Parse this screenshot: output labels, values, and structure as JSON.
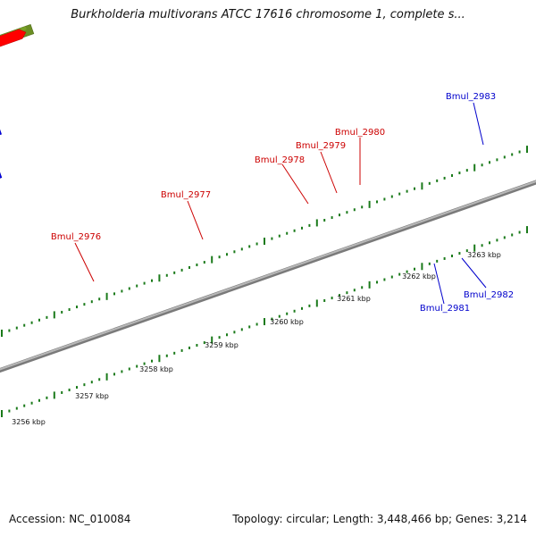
{
  "title": "Burkholderia multivorans ATCC 17616 chromosome 1, complete s...",
  "footer": {
    "accession": "Accession: NC_010084",
    "summary": "Topology: circular; Length: 3,448,466 bp; Genes: 3,214"
  },
  "colors": {
    "forward_gene": "#ff0000",
    "reverse_gene": "#0000ee",
    "forward_cds": "#6b8e23",
    "reverse_cds": "#4b3d8a",
    "other_feature": "#f0e68c",
    "orange_feature": "#ff8c00",
    "tick": "#1a7a1a",
    "backbone": "#999999",
    "forward_label": "#cc0000",
    "reverse_label": "#0000cc"
  },
  "ruler": {
    "unit": "kbp",
    "labels": [
      "3256 kbp",
      "3257 kbp",
      "3258 kbp",
      "3259 kbp",
      "3260 kbp",
      "3261 kbp",
      "3262 kbp",
      "3263 kbp"
    ]
  },
  "features": [
    {
      "kind": "other",
      "track": "cds_top",
      "color": "other_feature"
    },
    {
      "kind": "gene",
      "track": "gene_top",
      "color": "forward_gene"
    },
    {
      "kind": "cds",
      "track": "cds_top",
      "color": "forward_cds",
      "label": "Bmul_2976"
    },
    {
      "kind": "gene",
      "track": "gene_top",
      "color": "forward_gene"
    },
    {
      "kind": "cds",
      "track": "cds_top",
      "color": "forward_cds",
      "label": "Bmul_2977"
    },
    {
      "kind": "gene",
      "track": "gene_top",
      "color": "forward_gene"
    },
    {
      "kind": "other",
      "track": "cds_top",
      "color": "orange_feature",
      "label": "Bmul_2978"
    },
    {
      "kind": "gene",
      "track": "gene_top",
      "color": "forward_gene",
      "label": "Bmul_2979"
    },
    {
      "kind": "gene",
      "track": "gene_top",
      "color": "forward_gene"
    },
    {
      "kind": "gene",
      "track": "gene_top",
      "color": "forward_gene",
      "label": "Bmul_2980"
    },
    {
      "kind": "gene",
      "track": "gene_bottom",
      "color": "reverse_gene"
    },
    {
      "kind": "cds",
      "track": "cds_bottom",
      "color": "reverse_cds",
      "label": "Bmul_2981"
    },
    {
      "kind": "gene",
      "track": "gene_bottom",
      "color": "reverse_gene",
      "label": "Bmul_2982"
    },
    {
      "kind": "cds",
      "track": "cds_far",
      "color": "reverse_cds",
      "label": "Bmul_2983"
    },
    {
      "kind": "gene",
      "track": "gene_far",
      "color": "forward_gene"
    },
    {
      "kind": "gene",
      "track": "gene_bottom",
      "color": "reverse_gene"
    }
  ]
}
